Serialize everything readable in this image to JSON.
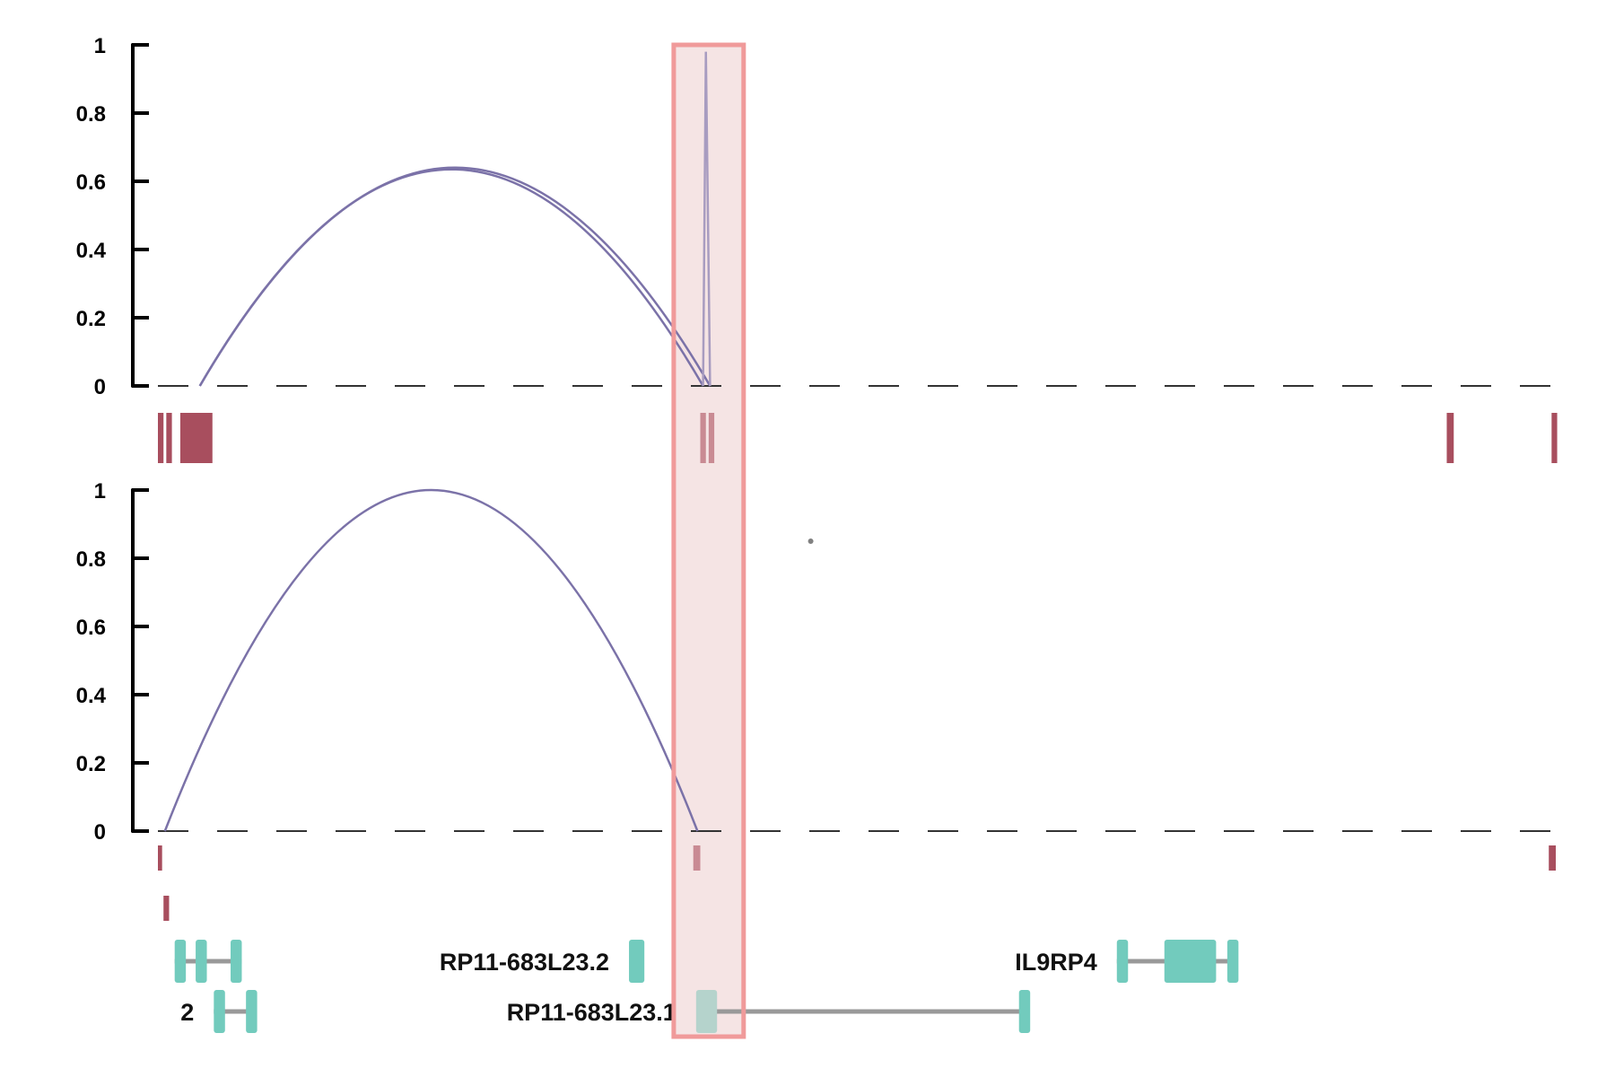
{
  "chart_data": {
    "type": "line",
    "title": "",
    "xlabel": "",
    "ylabel": "",
    "panels": [
      {
        "name": "",
        "ylim": [
          0,
          1
        ],
        "yticks": [
          "0",
          "0.2",
          "0.4",
          "0.6",
          "0.8",
          "1"
        ],
        "arcs": [
          {
            "x_start": 0.03,
            "x_end": 0.395,
            "height": 0.64,
            "color": "#7B72A8"
          },
          {
            "x_start": 0.03,
            "x_end": 0.39,
            "height": 0.635,
            "color": "#7B72A8"
          }
        ],
        "spike": {
          "x_left": 0.39,
          "x_peak": 0.392,
          "x_right": 0.395,
          "height": 0.98,
          "color": "#A89CC0"
        },
        "exons": [
          {
            "x": 0.0,
            "w": 0.004,
            "color": "#A84E5E"
          },
          {
            "x": 0.006,
            "w": 0.004,
            "color": "#A84E5E"
          },
          {
            "x": 0.016,
            "w": 0.023,
            "color": "#A84E5E"
          },
          {
            "x": 0.388,
            "w": 0.004,
            "color": "#C98A93"
          },
          {
            "x": 0.394,
            "w": 0.004,
            "color": "#C98A93"
          },
          {
            "x": 0.922,
            "w": 0.005,
            "color": "#A84E5E"
          },
          {
            "x": 0.997,
            "w": 0.004,
            "color": "#A84E5E"
          }
        ]
      },
      {
        "name": "",
        "ylim": [
          0,
          1
        ],
        "yticks": [
          "0",
          "0.2",
          "0.4",
          "0.6",
          "0.8",
          "1"
        ],
        "arcs": [
          {
            "x_start": 0.005,
            "x_end": 0.386,
            "height": 1.0,
            "color": "#7B72A8"
          }
        ],
        "dot": {
          "x": 0.467,
          "y": 0.85,
          "color": "#808080"
        },
        "exons": [
          {
            "x": 0.0,
            "w": 0.003,
            "row": 0,
            "color": "#A84E5E"
          },
          {
            "x": 0.383,
            "w": 0.005,
            "row": 0,
            "color": "#C98A93"
          },
          {
            "x": 0.995,
            "w": 0.005,
            "row": 0,
            "color": "#A84E5E"
          },
          {
            "x": 0.004,
            "w": 0.004,
            "row": 1,
            "color": "#A84E5E"
          }
        ]
      }
    ],
    "highlight": {
      "x_start": 0.369,
      "x_end": 0.419,
      "fill": "#F5E4E4",
      "stroke": "#F09A9A"
    },
    "genes": [
      {
        "label": "",
        "row": 0,
        "line": [
          0.012,
          0.06
        ],
        "exons": [
          [
            0.012,
            0.008
          ],
          [
            0.027,
            0.008
          ],
          [
            0.052,
            0.008
          ]
        ]
      },
      {
        "label": "RP11-683L23.2",
        "row": 0,
        "line": [],
        "exons": [
          [
            0.337,
            0.011
          ]
        ]
      },
      {
        "label": "IL9RP4",
        "row": 0,
        "line": [
          0.686,
          0.77
        ],
        "exons": [
          [
            0.686,
            0.008
          ],
          [
            0.72,
            0.037
          ],
          [
            0.765,
            0.008
          ]
        ]
      },
      {
        "label": "2",
        "row": 1,
        "line": [
          0.04,
          0.07
        ],
        "exons": [
          [
            0.04,
            0.008
          ],
          [
            0.063,
            0.008
          ]
        ]
      },
      {
        "label": "RP11-683L23.1",
        "row": 1,
        "line": [
          0.395,
          0.62
        ],
        "exons": [
          [
            0.385,
            0.015
          ],
          [
            0.616,
            0.008
          ]
        ]
      }
    ],
    "grid": false,
    "legend": "none"
  },
  "colors": {
    "axis": "#000000",
    "baseline_dash": "#333333",
    "gene_exon": "#72CBBD",
    "gene_exon_highlighted": "#B5D3CC",
    "gene_intron": "#999999"
  }
}
